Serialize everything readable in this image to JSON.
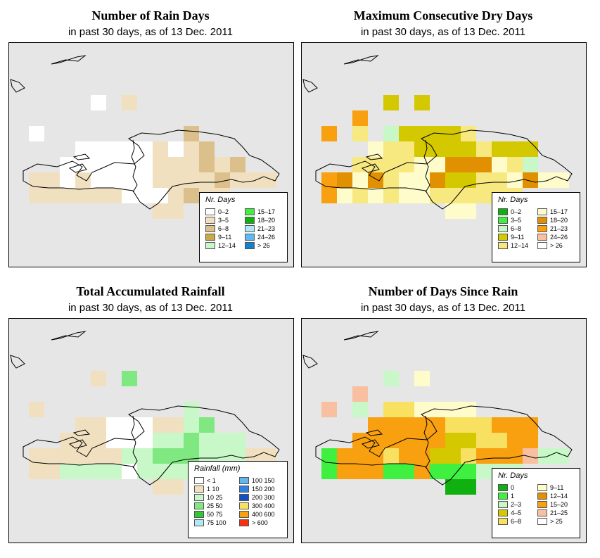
{
  "panels": [
    {
      "title": "Number of Rain Days",
      "subtitle": "in past 30 days, as of  13 Dec. 2011",
      "legend_title": "Nr. Days",
      "legend": [
        {
          "label": "0–2",
          "color": "#ffffff"
        },
        {
          "label": "3–5",
          "color": "#f0e0c0"
        },
        {
          "label": "6–8",
          "color": "#dcc08c"
        },
        {
          "label": "9–11",
          "color": "#c8a848"
        },
        {
          "label": "12–14",
          "color": "#c8f8c8"
        },
        {
          "label": "15–17",
          "color": "#40f040"
        },
        {
          "label": "18–20",
          "color": "#10b010"
        },
        {
          "label": "21–23",
          "color": "#b0e8f8"
        },
        {
          "label": "24–26",
          "color": "#60b8f0"
        },
        {
          "label": "> 26",
          "color": "#1080d0"
        }
      ]
    },
    {
      "title": "Maximum Consecutive Dry Days",
      "subtitle": "in past 30 days, as of  13 Dec. 2011",
      "legend_title": "Nr. Days",
      "legend": [
        {
          "label": "0–2",
          "color": "#10b010"
        },
        {
          "label": "3–5",
          "color": "#40f040"
        },
        {
          "label": "6–8",
          "color": "#c8f8c8"
        },
        {
          "label": "9–11",
          "color": "#d4c800"
        },
        {
          "label": "12–14",
          "color": "#f8e880"
        },
        {
          "label": "15–17",
          "color": "#fffccc"
        },
        {
          "label": "18–20",
          "color": "#e09000"
        },
        {
          "label": "21–23",
          "color": "#f8a010"
        },
        {
          "label": "24–26",
          "color": "#f8c0a0"
        },
        {
          "label": "> 26",
          "color": "#ffffff"
        }
      ]
    },
    {
      "title": "Total Accumulated Rainfall",
      "subtitle": "in past 30 days, as of  13 Dec. 2011",
      "legend_title": "Rainfall (mm)",
      "legend": [
        {
          "label": "< 1",
          "color": "#ffffff"
        },
        {
          "label": "1    10",
          "color": "#f0e0c0"
        },
        {
          "label": "10    25",
          "color": "#c8f8c8"
        },
        {
          "label": "25    50",
          "color": "#80e880"
        },
        {
          "label": "50    75",
          "color": "#30c830"
        },
        {
          "label": "75  100",
          "color": "#b0e8f8"
        },
        {
          "label": "100  150",
          "color": "#60b8f0"
        },
        {
          "label": "150  200",
          "color": "#3080e0"
        },
        {
          "label": "200  300",
          "color": "#1050c0"
        },
        {
          "label": "300  400",
          "color": "#f8e060"
        },
        {
          "label": "400  600",
          "color": "#f8a010"
        },
        {
          "label": "> 600",
          "color": "#f83010"
        }
      ]
    },
    {
      "title": "Number of Days Since Rain",
      "subtitle": "in past 30 days, as of  13 Dec. 2011",
      "legend_title": "Nr. Days",
      "legend": [
        {
          "label": "0",
          "color": "#10b010"
        },
        {
          "label": "1",
          "color": "#40f040"
        },
        {
          "label": "2–3",
          "color": "#c8f8c8"
        },
        {
          "label": "4–5",
          "color": "#d4c800"
        },
        {
          "label": "6–8",
          "color": "#f8e060"
        },
        {
          "label": "9–11",
          "color": "#fffccc"
        },
        {
          "label": "12–14",
          "color": "#e09000"
        },
        {
          "label": "15–20",
          "color": "#f8a010"
        },
        {
          "label": "21–25",
          "color": "#f8c0a0"
        },
        {
          "label": "> 25",
          "color": "#ffffff"
        }
      ]
    }
  ],
  "map_grids": [
    [
      "....0.1.........",
      "................",
      "0.........2.....",
      "...000001012....",
      "..000000111212..",
      "1101000011112111",
      "1111110001211...",
      "........11......"
    ],
    [
      "....3.3.........",
      "..7.............",
      "7.4.233334......",
      "...54433334333..",
      "..444455666542..",
      "7656455633445655",
      "7545455444444...",
      "........55......"
    ],
    [
      "....1.3.........",
      "................",
      "1.........2.....",
      "...110001123....",
      "..111000223222..",
      "1111112233322211",
      "1122220222222...",
      "........11......"
    ],
    [
      "....2.5.........",
      "..8.............",
      "8.2.445555......",
      "...77777444777..",
      "..777777334477..",
      "1777477334777822",
      "1777117111222...",
      "........00......"
    ]
  ],
  "grid_palettes": [
    [
      "#ffffff",
      "#f0e0c0",
      "#dcc08c"
    ],
    [
      "#10b010",
      "#40f040",
      "#c8f8c8",
      "#d4c800",
      "#f8e880",
      "#fffccc",
      "#e09000",
      "#f8a010",
      "#f8c0a0"
    ],
    [
      "#ffffff",
      "#f0e0c0",
      "#c8f8c8",
      "#80e880"
    ],
    [
      "#10b010",
      "#40f040",
      "#c8f8c8",
      "#d4c800",
      "#f8e060",
      "#fffccc",
      "#e09000",
      "#f8a010",
      "#f8c0a0"
    ]
  ],
  "colors": {
    "map_background": "#e6e6e6",
    "coastline": "#000000"
  }
}
